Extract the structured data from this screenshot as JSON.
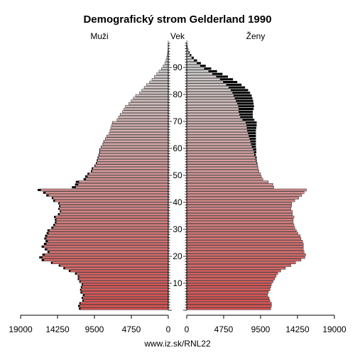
{
  "chart_data": {
    "type": "bar",
    "title": "Demografický strom Gelderland 1990",
    "left_label": "Muži",
    "center_label": "Vek",
    "right_label": "Ženy",
    "footer": "www.iz.sk/RNL22",
    "x_max": 19000,
    "x_ticks_left": [
      "19000",
      "14250",
      "9500",
      "4750",
      "0"
    ],
    "x_ticks_right": [
      "0",
      "4750",
      "9500",
      "14250",
      "19000"
    ],
    "tick_values": [
      19000,
      14250,
      9500,
      4750,
      0
    ],
    "age_ticks": [
      "10",
      "20",
      "30",
      "40",
      "50",
      "60",
      "70",
      "80",
      "90"
    ],
    "ages": [
      0,
      1,
      2,
      3,
      4,
      5,
      6,
      7,
      8,
      9,
      10,
      11,
      12,
      13,
      14,
      15,
      16,
      17,
      18,
      19,
      20,
      21,
      22,
      23,
      24,
      25,
      26,
      27,
      28,
      29,
      30,
      31,
      32,
      33,
      34,
      35,
      36,
      37,
      38,
      39,
      40,
      41,
      42,
      43,
      44,
      45,
      46,
      47,
      48,
      49,
      50,
      51,
      52,
      53,
      54,
      55,
      56,
      57,
      58,
      59,
      60,
      61,
      62,
      63,
      64,
      65,
      66,
      67,
      68,
      69,
      70,
      71,
      72,
      73,
      74,
      75,
      76,
      77,
      78,
      79,
      80,
      81,
      82,
      83,
      84,
      85,
      86,
      87,
      88,
      89,
      90,
      91,
      92,
      93,
      94,
      95,
      96,
      97,
      98,
      99
    ],
    "series": [
      {
        "name": "Muži",
        "values": [
          11300,
          11400,
          11300,
          10900,
          11000,
          10800,
          11100,
          11200,
          11100,
          11000,
          11300,
          11500,
          11500,
          11800,
          12600,
          13300,
          13900,
          14900,
          16000,
          16200,
          15900,
          15300,
          15600,
          16000,
          15700,
          15500,
          15700,
          15600,
          15400,
          15300,
          14800,
          14600,
          14400,
          14400,
          14500,
          14000,
          13800,
          14000,
          13900,
          14000,
          14600,
          14800,
          15400,
          15800,
          16400,
          11900,
          11600,
          11500,
          10600,
          10400,
          10200,
          9800,
          9700,
          9400,
          9200,
          9100,
          9000,
          8900,
          8800,
          8800,
          8600,
          8400,
          8300,
          8100,
          7900,
          7600,
          7500,
          7400,
          7300,
          7200,
          6600,
          6400,
          6200,
          5900,
          5700,
          5500,
          5100,
          4800,
          4500,
          4200,
          3700,
          3400,
          3100,
          2800,
          2400,
          2100,
          1800,
          1500,
          1200,
          900,
          650,
          450,
          300,
          200,
          120,
          70,
          40,
          20,
          10,
          5
        ],
        "excess": [
          200,
          200,
          150,
          150,
          150,
          200,
          200,
          150,
          150,
          150,
          150,
          150,
          150,
          200,
          200,
          200,
          200,
          200,
          300,
          400,
          300,
          250,
          300,
          300,
          300,
          300,
          250,
          250,
          250,
          250,
          250,
          200,
          200,
          200,
          200,
          200,
          150,
          150,
          150,
          150,
          200,
          200,
          300,
          300,
          400,
          500,
          400,
          400,
          300,
          300,
          200,
          150,
          150,
          100,
          100,
          100,
          100,
          80,
          80,
          60,
          60,
          50,
          40,
          30,
          20,
          10,
          10,
          0,
          0,
          0,
          0,
          0,
          0,
          0,
          0,
          0,
          0,
          0,
          0,
          0,
          0,
          0,
          0,
          0,
          0,
          0,
          0,
          0,
          0,
          0,
          0,
          0,
          0,
          0,
          0,
          0,
          0,
          0,
          0,
          0
        ]
      },
      {
        "name": "Ženy",
        "values": [
          10800,
          10900,
          10900,
          10700,
          10600,
          10400,
          10500,
          10700,
          10800,
          10900,
          11100,
          11300,
          11500,
          11700,
          12100,
          12700,
          13400,
          14000,
          14700,
          15200,
          15300,
          15100,
          15000,
          15000,
          15000,
          14900,
          14700,
          14600,
          14300,
          14100,
          13900,
          13800,
          13700,
          13700,
          13800,
          13600,
          13600,
          13400,
          13500,
          13500,
          13900,
          14400,
          14800,
          15100,
          15400,
          11200,
          11100,
          10500,
          9800,
          9600,
          9500,
          9300,
          9200,
          9100,
          9000,
          8900,
          8850,
          8700,
          8650,
          8550,
          8400,
          8300,
          8200,
          8100,
          8000,
          7900,
          7800,
          7750,
          7700,
          7600,
          7200,
          6900,
          6800,
          6700,
          6700,
          6650,
          6500,
          6350,
          6200,
          6050,
          5900,
          5700,
          5400,
          5100,
          4700,
          4300,
          3800,
          3300,
          2800,
          2250,
          1750,
          1300,
          950,
          650,
          420,
          260,
          150,
          80,
          40,
          20
        ],
        "excess": [
          0,
          0,
          0,
          0,
          0,
          0,
          0,
          0,
          0,
          0,
          0,
          0,
          0,
          0,
          0,
          0,
          0,
          0,
          0,
          0,
          0,
          0,
          0,
          0,
          0,
          0,
          0,
          0,
          0,
          0,
          0,
          0,
          0,
          0,
          0,
          0,
          0,
          0,
          0,
          0,
          0,
          0,
          0,
          0,
          0,
          0,
          0,
          0,
          0,
          0,
          0,
          0,
          0,
          50,
          80,
          100,
          150,
          200,
          300,
          400,
          500,
          600,
          700,
          800,
          900,
          1000,
          1100,
          1200,
          1300,
          1400,
          1500,
          1600,
          1700,
          1800,
          1900,
          2000,
          2100,
          2200,
          2250,
          2300,
          2250,
          2200,
          2100,
          1950,
          1800,
          1650,
          1500,
          1300,
          1100,
          900,
          700,
          520,
          380,
          260,
          170,
          110,
          60,
          35,
          18,
          8
        ]
      }
    ],
    "colors": {
      "young": "#d94f4f",
      "old": "#d0d0d0",
      "excess": "#000000",
      "axis": "#000000"
    },
    "grid": false
  }
}
